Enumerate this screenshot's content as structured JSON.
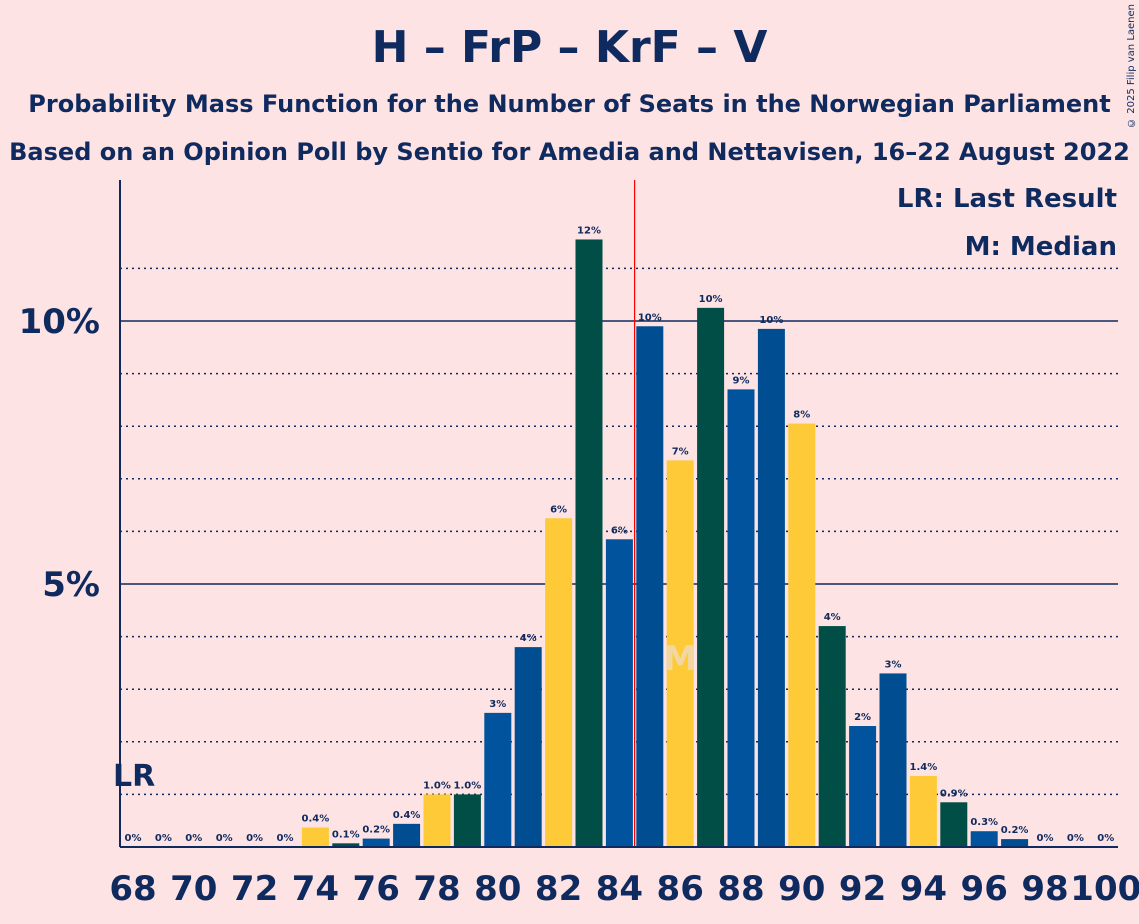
{
  "title": "H – FrP – KrF – V",
  "subtitle": "Probability Mass Function for the Number of Seats in the Norwegian Parliament",
  "subtitle2": "Based on an Opinion Poll by Sentio for Amedia and Nettavisen, 16–22 August 2022",
  "copyright": "© 2025 Filip van Laenen",
  "legend": {
    "lr": "LR: Last Result",
    "m": "M: Median"
  },
  "colors": {
    "background": "#fde3e3",
    "axis": "#0f2a5e",
    "yellow": "#ffca38",
    "darkgreen": "#004e45",
    "blue": "#004d92",
    "mediumblue": "#00539c",
    "majority_line": "#ff0000"
  },
  "chart_data": {
    "type": "bar",
    "title": "H – FrP – KrF – V",
    "xlabel": "",
    "ylabel": "",
    "ylim": [
      0,
      12.5
    ],
    "y_ticks": [
      {
        "value": 5,
        "label": "5%"
      },
      {
        "value": 10,
        "label": "10%"
      }
    ],
    "x_tick_labels": [
      "68",
      "70",
      "72",
      "74",
      "76",
      "78",
      "80",
      "82",
      "84",
      "86",
      "88",
      "90",
      "92",
      "94",
      "96",
      "98",
      "100"
    ],
    "last_result": {
      "seat": 68,
      "label": "LR"
    },
    "median": {
      "seat": 86,
      "label": "M"
    },
    "majority_threshold": 85,
    "bars": [
      {
        "seat": 68,
        "value": 0,
        "label": "0%",
        "color": "yellow"
      },
      {
        "seat": 69,
        "value": 0,
        "label": "0%",
        "color": "darkgreen"
      },
      {
        "seat": 70,
        "value": 0,
        "label": "0%",
        "color": "blue"
      },
      {
        "seat": 71,
        "value": 0,
        "label": "0%",
        "color": "blue"
      },
      {
        "seat": 72,
        "value": 0,
        "label": "0%",
        "color": "yellow"
      },
      {
        "seat": 73,
        "value": 0,
        "label": "0%",
        "color": "darkgreen"
      },
      {
        "seat": 74,
        "value": 0.37,
        "label": "0.4%",
        "color": "yellow"
      },
      {
        "seat": 75,
        "value": 0.07,
        "label": "0.1%",
        "color": "darkgreen"
      },
      {
        "seat": 76,
        "value": 0.16,
        "label": "0.2%",
        "color": "mediumblue"
      },
      {
        "seat": 77,
        "value": 0.44,
        "label": "0.4%",
        "color": "blue"
      },
      {
        "seat": 78,
        "value": 1.0,
        "label": "1.0%",
        "color": "yellow"
      },
      {
        "seat": 79,
        "value": 1.0,
        "label": "1.0%",
        "color": "darkgreen"
      },
      {
        "seat": 80,
        "value": 2.55,
        "label": "3%",
        "color": "mediumblue"
      },
      {
        "seat": 81,
        "value": 3.8,
        "label": "4%",
        "color": "blue"
      },
      {
        "seat": 82,
        "value": 6.25,
        "label": "6%",
        "color": "yellow"
      },
      {
        "seat": 83,
        "value": 11.55,
        "label": "12%",
        "color": "darkgreen"
      },
      {
        "seat": 84,
        "value": 5.85,
        "label": "6%",
        "color": "mediumblue"
      },
      {
        "seat": 85,
        "value": 9.9,
        "label": "10%",
        "color": "blue"
      },
      {
        "seat": 86,
        "value": 7.35,
        "label": "7%",
        "color": "yellow"
      },
      {
        "seat": 87,
        "value": 10.25,
        "label": "10%",
        "color": "darkgreen"
      },
      {
        "seat": 88,
        "value": 8.7,
        "label": "9%",
        "color": "mediumblue"
      },
      {
        "seat": 89,
        "value": 9.85,
        "label": "10%",
        "color": "blue"
      },
      {
        "seat": 90,
        "value": 8.05,
        "label": "8%",
        "color": "yellow"
      },
      {
        "seat": 91,
        "value": 4.2,
        "label": "4%",
        "color": "darkgreen"
      },
      {
        "seat": 92,
        "value": 2.3,
        "label": "2%",
        "color": "mediumblue"
      },
      {
        "seat": 93,
        "value": 3.3,
        "label": "3%",
        "color": "blue"
      },
      {
        "seat": 94,
        "value": 1.35,
        "label": "1.4%",
        "color": "yellow"
      },
      {
        "seat": 95,
        "value": 0.85,
        "label": "0.9%",
        "color": "darkgreen"
      },
      {
        "seat": 96,
        "value": 0.3,
        "label": "0.3%",
        "color": "mediumblue"
      },
      {
        "seat": 97,
        "value": 0.15,
        "label": "0.2%",
        "color": "blue"
      },
      {
        "seat": 98,
        "value": 0,
        "label": "0%",
        "color": "yellow"
      },
      {
        "seat": 99,
        "value": 0,
        "label": "0%",
        "color": "darkgreen"
      },
      {
        "seat": 100,
        "value": 0,
        "label": "0%",
        "color": "blue"
      }
    ]
  }
}
